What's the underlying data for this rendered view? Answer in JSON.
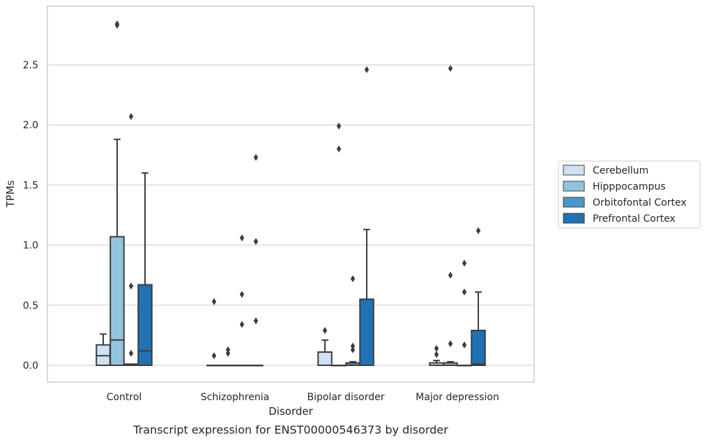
{
  "chart_data": {
    "type": "box",
    "caption": "Transcript expression for ENST00000546373 by disorder",
    "xlabel": "Disorder",
    "ylabel": "TPMs",
    "ylim": [
      -0.14,
      2.99
    ],
    "yticks": [
      "0.0",
      "0.5",
      "1.0",
      "1.5",
      "2.0",
      "2.5"
    ],
    "ytick_values": [
      0.0,
      0.5,
      1.0,
      1.5,
      2.0,
      2.5
    ],
    "grid": true,
    "legend_position": "right",
    "categories": [
      "Control",
      "Schizophrenia",
      "Bipolar disorder",
      "Major depression"
    ],
    "series": [
      {
        "name": "Cerebellum",
        "color": "#cfe1f2",
        "boxes": [
          {
            "q1": 0.0,
            "median": 0.08,
            "q3": 0.17,
            "whisker_low": 0.0,
            "whisker_high": 0.26,
            "outliers": []
          },
          {
            "q1": 0.0,
            "median": 0.0,
            "q3": 0.0,
            "whisker_low": 0.0,
            "whisker_high": 0.0,
            "outliers": [
              0.53,
              0.08
            ]
          },
          {
            "q1": 0.0,
            "median": 0.0,
            "q3": 0.11,
            "whisker_low": 0.0,
            "whisker_high": 0.21,
            "outliers": [
              0.29
            ]
          },
          {
            "q1": 0.0,
            "median": 0.0,
            "q3": 0.02,
            "whisker_low": 0.0,
            "whisker_high": 0.04,
            "outliers": [
              0.14,
              0.09
            ]
          }
        ]
      },
      {
        "name": "Hipppocampus",
        "color": "#93c4de",
        "boxes": [
          {
            "q1": 0.0,
            "median": 0.21,
            "q3": 1.07,
            "whisker_low": 0.0,
            "whisker_high": 1.88,
            "outliers": [
              2.83,
              2.84
            ]
          },
          {
            "q1": 0.0,
            "median": 0.0,
            "q3": 0.0,
            "whisker_low": 0.0,
            "whisker_high": 0.0,
            "outliers": [
              0.13,
              0.1
            ]
          },
          {
            "q1": 0.0,
            "median": 0.0,
            "q3": 0.0,
            "whisker_low": 0.0,
            "whisker_high": 0.0,
            "outliers": [
              1.99,
              1.8
            ]
          },
          {
            "q1": 0.0,
            "median": 0.0,
            "q3": 0.02,
            "whisker_low": 0.0,
            "whisker_high": 0.03,
            "outliers": [
              2.47,
              0.75,
              0.18
            ]
          }
        ]
      },
      {
        "name": "Orbitofontal Cortex",
        "color": "#4a98c9",
        "boxes": [
          {
            "q1": 0.0,
            "median": 0.0,
            "q3": 0.01,
            "whisker_low": 0.0,
            "whisker_high": 0.01,
            "outliers": [
              2.07,
              0.66,
              0.1
            ]
          },
          {
            "q1": 0.0,
            "median": 0.0,
            "q3": 0.0,
            "whisker_low": 0.0,
            "whisker_high": 0.0,
            "outliers": [
              1.06,
              0.59,
              0.34
            ]
          },
          {
            "q1": 0.0,
            "median": 0.0,
            "q3": 0.02,
            "whisker_low": 0.0,
            "whisker_high": 0.03,
            "outliers": [
              0.72,
              0.16,
              0.13
            ]
          },
          {
            "q1": 0.0,
            "median": 0.0,
            "q3": 0.0,
            "whisker_low": 0.0,
            "whisker_high": 0.0,
            "outliers": [
              0.85,
              0.61,
              0.17
            ]
          }
        ]
      },
      {
        "name": "Prefrontal Cortex",
        "color": "#2171b5",
        "boxes": [
          {
            "q1": 0.0,
            "median": 0.12,
            "q3": 0.67,
            "whisker_low": 0.0,
            "whisker_high": 1.6,
            "outliers": []
          },
          {
            "q1": 0.0,
            "median": 0.0,
            "q3": 0.0,
            "whisker_low": 0.0,
            "whisker_high": 0.0,
            "outliers": [
              1.73,
              1.03,
              0.37
            ]
          },
          {
            "q1": 0.0,
            "median": 0.0,
            "q3": 0.55,
            "whisker_low": 0.0,
            "whisker_high": 1.13,
            "outliers": [
              2.46
            ]
          },
          {
            "q1": 0.0,
            "median": 0.01,
            "q3": 0.29,
            "whisker_low": 0.0,
            "whisker_high": 0.61,
            "outliers": [
              1.12
            ]
          }
        ]
      }
    ]
  }
}
